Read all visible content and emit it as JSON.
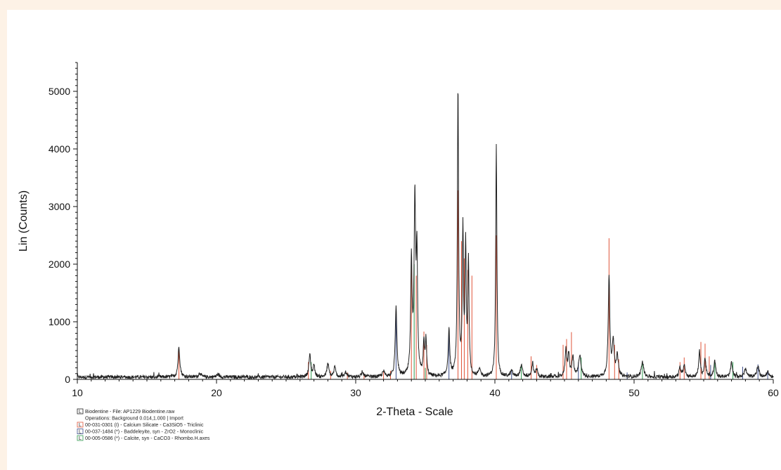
{
  "chart_data": {
    "type": "line",
    "xlabel": "2-Theta - Scale",
    "ylabel": "Lin (Counts)",
    "xlim": [
      10,
      60
    ],
    "ylim": [
      0,
      5500
    ],
    "x_ticks": [
      10,
      20,
      30,
      40,
      50,
      60
    ],
    "y_ticks": [
      0,
      1000,
      2000,
      3000,
      4000,
      5000
    ],
    "grid": false,
    "legend_position": "bottom-left",
    "series": [
      {
        "name": "Biodentine - File: AP1229 Biodentine.raw",
        "color": "#222222",
        "background_level": 40,
        "peaks": [
          {
            "x": 17.3,
            "y": 560,
            "width": 0.08
          },
          {
            "x": 18.8,
            "y": 110,
            "width": 0.1
          },
          {
            "x": 20.1,
            "y": 90,
            "width": 0.1
          },
          {
            "x": 26.7,
            "y": 420,
            "width": 0.08
          },
          {
            "x": 27.0,
            "y": 240,
            "width": 0.07
          },
          {
            "x": 28.0,
            "y": 270,
            "width": 0.08
          },
          {
            "x": 28.5,
            "y": 210,
            "width": 0.08
          },
          {
            "x": 29.3,
            "y": 120,
            "width": 0.1
          },
          {
            "x": 30.5,
            "y": 110,
            "width": 0.1
          },
          {
            "x": 32.0,
            "y": 130,
            "width": 0.1
          },
          {
            "x": 32.9,
            "y": 1250,
            "width": 0.07
          },
          {
            "x": 34.0,
            "y": 1980,
            "width": 0.06
          },
          {
            "x": 34.25,
            "y": 3080,
            "width": 0.07
          },
          {
            "x": 34.4,
            "y": 2000,
            "width": 0.05
          },
          {
            "x": 34.9,
            "y": 600,
            "width": 0.06
          },
          {
            "x": 35.05,
            "y": 650,
            "width": 0.05
          },
          {
            "x": 36.7,
            "y": 830,
            "width": 0.07
          },
          {
            "x": 37.35,
            "y": 5020,
            "width": 0.05
          },
          {
            "x": 37.7,
            "y": 2550,
            "width": 0.05
          },
          {
            "x": 37.9,
            "y": 2250,
            "width": 0.05
          },
          {
            "x": 38.1,
            "y": 2000,
            "width": 0.05
          },
          {
            "x": 38.9,
            "y": 150,
            "width": 0.1
          },
          {
            "x": 40.1,
            "y": 4060,
            "width": 0.05
          },
          {
            "x": 41.2,
            "y": 140,
            "width": 0.1
          },
          {
            "x": 41.9,
            "y": 230,
            "width": 0.1
          },
          {
            "x": 42.7,
            "y": 260,
            "width": 0.08
          },
          {
            "x": 43.0,
            "y": 170,
            "width": 0.08
          },
          {
            "x": 45.1,
            "y": 500,
            "width": 0.07
          },
          {
            "x": 45.3,
            "y": 420,
            "width": 0.07
          },
          {
            "x": 45.6,
            "y": 390,
            "width": 0.07
          },
          {
            "x": 46.1,
            "y": 420,
            "width": 0.1
          },
          {
            "x": 48.2,
            "y": 1770,
            "width": 0.07
          },
          {
            "x": 48.5,
            "y": 650,
            "width": 0.08
          },
          {
            "x": 48.8,
            "y": 400,
            "width": 0.08
          },
          {
            "x": 50.6,
            "y": 300,
            "width": 0.1
          },
          {
            "x": 53.3,
            "y": 200,
            "width": 0.08
          },
          {
            "x": 53.6,
            "y": 260,
            "width": 0.08
          },
          {
            "x": 54.7,
            "y": 480,
            "width": 0.07
          },
          {
            "x": 55.1,
            "y": 360,
            "width": 0.07
          },
          {
            "x": 55.8,
            "y": 320,
            "width": 0.08
          },
          {
            "x": 57.0,
            "y": 280,
            "width": 0.08
          },
          {
            "x": 58.0,
            "y": 180,
            "width": 0.1
          },
          {
            "x": 58.9,
            "y": 230,
            "width": 0.1
          },
          {
            "x": 59.6,
            "y": 130,
            "width": 0.1
          }
        ]
      },
      {
        "name": "00-031-0301 (I) - Calcium Silicate - Ca3SiO5 - Triclinic",
        "color": "#e0553a",
        "sticks": [
          [
            17.3,
            500
          ],
          [
            26.6,
            300
          ],
          [
            28.2,
            150
          ],
          [
            29.4,
            120
          ],
          [
            30.6,
            100
          ],
          [
            32.0,
            130
          ],
          [
            32.5,
            150
          ],
          [
            34.0,
            2000
          ],
          [
            34.35,
            1800
          ],
          [
            34.9,
            830
          ],
          [
            35.1,
            600
          ],
          [
            37.35,
            3280
          ],
          [
            37.6,
            2400
          ],
          [
            37.8,
            2100
          ],
          [
            38.05,
            1900
          ],
          [
            38.35,
            1800
          ],
          [
            40.1,
            2500
          ],
          [
            42.6,
            400
          ],
          [
            43.0,
            250
          ],
          [
            44.9,
            600
          ],
          [
            45.15,
            700
          ],
          [
            45.5,
            820
          ],
          [
            48.2,
            2450
          ],
          [
            48.6,
            600
          ],
          [
            48.9,
            350
          ],
          [
            53.3,
            300
          ],
          [
            53.6,
            380
          ],
          [
            54.8,
            650
          ],
          [
            55.1,
            620
          ],
          [
            55.4,
            400
          ]
        ]
      },
      {
        "name": "00-037-1484 (*) - Baddeleyite, syn - ZrO2 - Monoclinic",
        "color": "#3a4c88",
        "sticks": [
          [
            32.9,
            1200
          ],
          [
            36.7,
            800
          ],
          [
            41.2,
            150
          ],
          [
            46.0,
            300
          ],
          [
            49.5,
            120
          ],
          [
            55.5,
            250
          ],
          [
            57.8,
            220
          ],
          [
            58.9,
            260
          ],
          [
            59.6,
            150
          ]
        ]
      },
      {
        "name": "00-005-0586 (*) - Calcite, syn - CaCO3 - Rhombo.H.axes",
        "color": "#2f9a4f",
        "sticks": [
          [
            26.8,
            300
          ],
          [
            34.2,
            2000
          ],
          [
            35.0,
            200
          ],
          [
            41.9,
            250
          ],
          [
            46.2,
            380
          ],
          [
            50.6,
            280
          ],
          [
            55.8,
            320
          ],
          [
            57.1,
            300
          ]
        ]
      }
    ],
    "legend": {
      "operations": "Operations: Background 0.014,1.000 | Import",
      "icon_label": "L"
    }
  }
}
